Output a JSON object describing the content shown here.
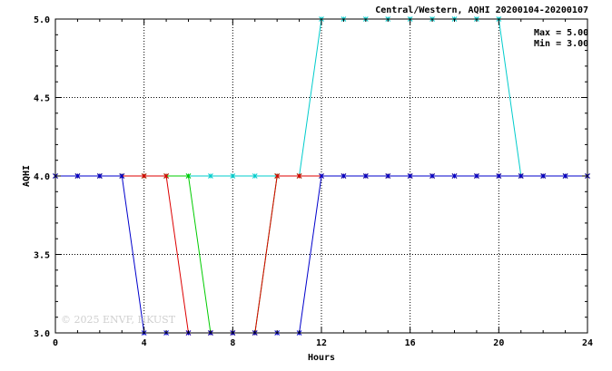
{
  "chart_data": {
    "type": "line",
    "title": "Central/Western, AQHI 20200104-20200107",
    "xlabel": "Hours",
    "ylabel": "AQHI",
    "xlim": [
      0,
      24
    ],
    "ylim": [
      3.0,
      5.0
    ],
    "x_ticks": [
      "0",
      "4",
      "8",
      "12",
      "16",
      "20",
      "24"
    ],
    "y_ticks": [
      "3.0",
      "3.5",
      "4.0",
      "4.5",
      "5.0"
    ],
    "grid": true,
    "stats": {
      "max": "Max = 5.00",
      "min": "Min = 3.00"
    },
    "watermark": "© 2025 ENVF, HKUST",
    "series": [
      {
        "color": "#00cccc",
        "marker": "x",
        "x": [
          0,
          1,
          2,
          3,
          4,
          5,
          6,
          7,
          8,
          9,
          10,
          11,
          12,
          13,
          14,
          15,
          16,
          17,
          18,
          19,
          20,
          21,
          22,
          23,
          24
        ],
        "y": [
          4,
          4,
          4,
          4,
          4,
          4,
          4,
          4,
          4,
          4,
          4,
          4,
          5,
          5,
          5,
          5,
          5,
          5,
          5,
          5,
          5,
          4,
          4,
          4,
          4
        ]
      },
      {
        "color": "#00cc00",
        "marker": "x",
        "x": [
          0,
          1,
          2,
          3,
          4,
          5,
          6,
          7,
          8,
          9,
          10,
          11,
          12,
          13,
          14,
          15,
          16,
          17,
          18,
          19,
          20,
          21,
          22,
          23,
          24
        ],
        "y": [
          4,
          4,
          4,
          4,
          4,
          4,
          4,
          3,
          3,
          3,
          4,
          4,
          4,
          4,
          4,
          4,
          4,
          4,
          4,
          4,
          4,
          4,
          4,
          4,
          4
        ]
      },
      {
        "color": "#dd0000",
        "marker": "x",
        "x": [
          0,
          1,
          2,
          3,
          4,
          5,
          6,
          7,
          8,
          9,
          10,
          11,
          12,
          13,
          14,
          15,
          16,
          17,
          18,
          19,
          20,
          21,
          22,
          23,
          24
        ],
        "y": [
          4,
          4,
          4,
          4,
          4,
          4,
          3,
          3,
          3,
          3,
          4,
          4,
          4,
          4,
          4,
          4,
          4,
          4,
          4,
          4,
          4,
          4,
          4,
          4,
          4
        ]
      },
      {
        "color": "#0000cc",
        "marker": "x",
        "x": [
          0,
          1,
          2,
          3,
          4,
          5,
          6,
          7,
          8,
          9,
          10,
          11,
          12,
          13,
          14,
          15,
          16,
          17,
          18,
          19,
          20,
          21,
          22,
          23,
          24
        ],
        "y": [
          4,
          4,
          4,
          4,
          3,
          3,
          3,
          3,
          3,
          3,
          3,
          3,
          4,
          4,
          4,
          4,
          4,
          4,
          4,
          4,
          4,
          4,
          4,
          4,
          4
        ]
      }
    ]
  }
}
